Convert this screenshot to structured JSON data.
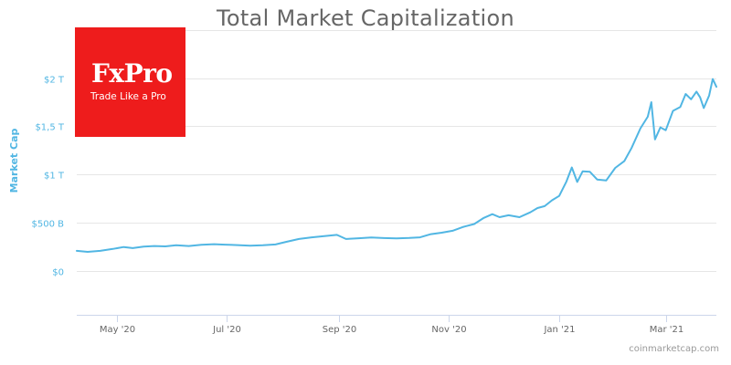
{
  "chart_data": {
    "type": "line",
    "title": "Total Market Capitalization",
    "xlabel": "",
    "ylabel": "Market Cap",
    "y_ticks": [
      "$0",
      "$500 B",
      "$1 T",
      "$1,5 T",
      "$2 T"
    ],
    "y_tick_values": [
      0,
      500,
      1000,
      1500,
      2000
    ],
    "ylim": [
      -450,
      2600
    ],
    "x_ticks": [
      "May '20",
      "Jul '20",
      "Sep '20",
      "Nov '20",
      "Jan '21",
      "Mar '21"
    ],
    "x_tick_dates": [
      "2020-05-01",
      "2020-07-01",
      "2020-09-01",
      "2020-11-01",
      "2021-01-01",
      "2021-03-01"
    ],
    "xlim": [
      "2020-04-09",
      "2021-03-29"
    ],
    "grid": true,
    "legend": "none",
    "color": "#51b6e3",
    "series": [
      {
        "values": [
          [
            "2020-04-09",
            212
          ],
          [
            "2020-04-15",
            202
          ],
          [
            "2020-04-22",
            212
          ],
          [
            "2020-04-29",
            232
          ],
          [
            "2020-05-05",
            252
          ],
          [
            "2020-05-10",
            240
          ],
          [
            "2020-05-16",
            256
          ],
          [
            "2020-05-22",
            262
          ],
          [
            "2020-05-28",
            258
          ],
          [
            "2020-06-03",
            270
          ],
          [
            "2020-06-10",
            262
          ],
          [
            "2020-06-17",
            274
          ],
          [
            "2020-06-24",
            281
          ],
          [
            "2020-06-30",
            276
          ],
          [
            "2020-07-07",
            271
          ],
          [
            "2020-07-14",
            266
          ],
          [
            "2020-07-21",
            270
          ],
          [
            "2020-07-28",
            278
          ],
          [
            "2020-08-03",
            305
          ],
          [
            "2020-08-10",
            335
          ],
          [
            "2020-08-17",
            352
          ],
          [
            "2020-08-24",
            364
          ],
          [
            "2020-08-31",
            377
          ],
          [
            "2020-09-05",
            335
          ],
          [
            "2020-09-12",
            342
          ],
          [
            "2020-09-19",
            350
          ],
          [
            "2020-09-26",
            344
          ],
          [
            "2020-10-03",
            341
          ],
          [
            "2020-10-10",
            345
          ],
          [
            "2020-10-16",
            352
          ],
          [
            "2020-10-22",
            385
          ],
          [
            "2020-10-28",
            400
          ],
          [
            "2020-11-03",
            420
          ],
          [
            "2020-11-09",
            460
          ],
          [
            "2020-11-15",
            490
          ],
          [
            "2020-11-20",
            550
          ],
          [
            "2020-11-25",
            592
          ],
          [
            "2020-11-29",
            560
          ],
          [
            "2020-12-04",
            580
          ],
          [
            "2020-12-10",
            560
          ],
          [
            "2020-12-16",
            610
          ],
          [
            "2020-12-20",
            655
          ],
          [
            "2020-12-24",
            675
          ],
          [
            "2020-12-28",
            735
          ],
          [
            "2021-01-01",
            780
          ],
          [
            "2021-01-05",
            930
          ],
          [
            "2021-01-08",
            1075
          ],
          [
            "2021-01-11",
            925
          ],
          [
            "2021-01-14",
            1035
          ],
          [
            "2021-01-18",
            1030
          ],
          [
            "2021-01-22",
            950
          ],
          [
            "2021-01-27",
            940
          ],
          [
            "2021-02-01",
            1070
          ],
          [
            "2021-02-06",
            1140
          ],
          [
            "2021-02-10",
            1275
          ],
          [
            "2021-02-15",
            1480
          ],
          [
            "2021-02-19",
            1600
          ],
          [
            "2021-02-21",
            1750
          ],
          [
            "2021-02-23",
            1365
          ],
          [
            "2021-02-26",
            1490
          ],
          [
            "2021-03-01",
            1460
          ],
          [
            "2021-03-05",
            1660
          ],
          [
            "2021-03-09",
            1700
          ],
          [
            "2021-03-12",
            1835
          ],
          [
            "2021-03-15",
            1780
          ],
          [
            "2021-03-18",
            1860
          ],
          [
            "2021-03-20",
            1800
          ],
          [
            "2021-03-22",
            1690
          ],
          [
            "2021-03-25",
            1820
          ],
          [
            "2021-03-27",
            1990
          ],
          [
            "2021-03-29",
            1910
          ]
        ]
      }
    ]
  },
  "logo": {
    "name": "FxPro",
    "tagline": "Trade Like a Pro"
  },
  "source": "coinmarketcap.com"
}
